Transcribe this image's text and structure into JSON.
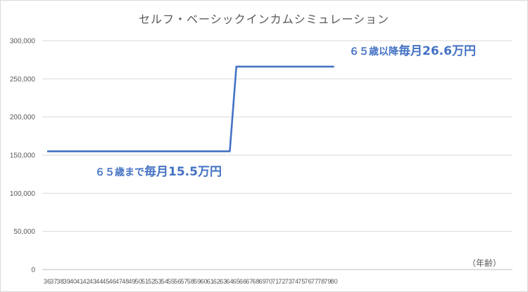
{
  "chart_data": {
    "type": "line",
    "title": "セルフ・ベーシックインカムシミュレーション",
    "xlabel": "（年齢）",
    "ylabel": "",
    "x": [
      36,
      37,
      38,
      39,
      40,
      41,
      42,
      43,
      44,
      45,
      46,
      47,
      48,
      49,
      50,
      51,
      52,
      53,
      54,
      55,
      56,
      57,
      58,
      59,
      60,
      61,
      62,
      63,
      64,
      65,
      66,
      67,
      68,
      69,
      70,
      71,
      72,
      73,
      74,
      75,
      76,
      77,
      78,
      79,
      80
    ],
    "series": [
      {
        "name": "",
        "color": "#4472c4",
        "values": [
          155000,
          155000,
          155000,
          155000,
          155000,
          155000,
          155000,
          155000,
          155000,
          155000,
          155000,
          155000,
          155000,
          155000,
          155000,
          155000,
          155000,
          155000,
          155000,
          155000,
          155000,
          155000,
          155000,
          155000,
          155000,
          155000,
          155000,
          155000,
          155000,
          266000,
          266000,
          266000,
          266000,
          266000,
          266000,
          266000,
          266000,
          266000,
          266000,
          266000,
          266000,
          266000,
          266000,
          266000,
          266000
        ]
      }
    ],
    "ylim": [
      0,
      300000
    ],
    "yticks": [
      0,
      50000,
      100000,
      150000,
      200000,
      250000,
      300000
    ],
    "ytick_labels": [
      "0",
      "50,000",
      "100,000",
      "150,000",
      "200,000",
      "250,000",
      "300,000"
    ],
    "grid": true,
    "annotations": [
      {
        "id": "before",
        "small": "６５歳まで",
        "big": "毎月15.5万円"
      },
      {
        "id": "after",
        "small": "６５歳以降",
        "big": "毎月26.6万円"
      }
    ]
  }
}
